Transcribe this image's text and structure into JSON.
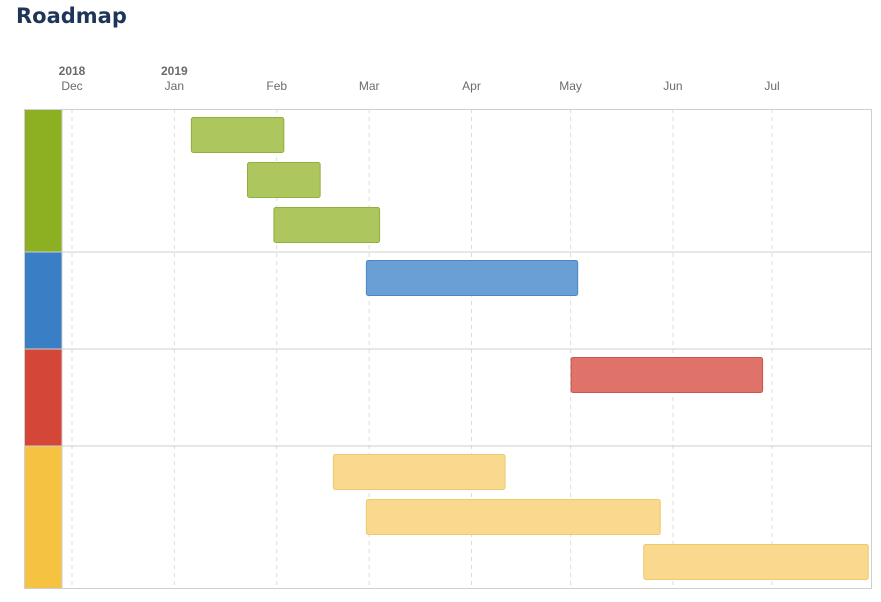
{
  "page": {
    "title": "Roadmap"
  },
  "chart_data": {
    "type": "gantt",
    "title": "Roadmap",
    "x_axis": {
      "unit": "month",
      "range": [
        "2018-11-15",
        "2019-07-31"
      ],
      "ticks": [
        {
          "date": "2018-12-01",
          "label": "Dec",
          "year": "2018"
        },
        {
          "date": "2019-01-01",
          "label": "Jan",
          "year": "2019"
        },
        {
          "date": "2019-02-01",
          "label": "Feb",
          "year": ""
        },
        {
          "date": "2019-03-01",
          "label": "Mar",
          "year": ""
        },
        {
          "date": "2019-04-01",
          "label": "Apr",
          "year": ""
        },
        {
          "date": "2019-05-01",
          "label": "May",
          "year": ""
        },
        {
          "date": "2019-06-01",
          "label": "Jun",
          "year": ""
        },
        {
          "date": "2019-07-01",
          "label": "Jul",
          "year": ""
        }
      ]
    },
    "grid": true,
    "groups": [
      {
        "color": "#8cb021",
        "bar_color": "#adc65d",
        "bar_border": "#8fb03a",
        "tasks": [
          {
            "start": "2019-01-06",
            "end": "2019-02-03"
          },
          {
            "start": "2019-01-23",
            "end": "2019-02-14"
          },
          {
            "start": "2019-01-31",
            "end": "2019-03-04"
          }
        ]
      },
      {
        "color": "#3a7ec6",
        "bar_color": "#6a9fd6",
        "bar_border": "#4c86c6",
        "tasks": [
          {
            "start": "2019-02-28",
            "end": "2019-05-03"
          }
        ]
      },
      {
        "color": "#d44638",
        "bar_color": "#df736a",
        "bar_border": "#c9564c",
        "tasks": [
          {
            "start": "2019-05-01",
            "end": "2019-06-28"
          }
        ]
      },
      {
        "color": "#f5c242",
        "bar_color": "#f9d98d",
        "bar_border": "#efc96b",
        "tasks": [
          {
            "start": "2019-02-18",
            "end": "2019-04-11"
          },
          {
            "start": "2019-02-28",
            "end": "2019-05-28"
          },
          {
            "start": "2019-05-23",
            "end": "2019-07-30"
          }
        ]
      }
    ]
  }
}
